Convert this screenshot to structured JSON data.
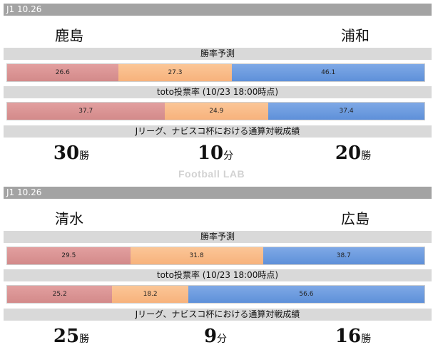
{
  "watermark": "Football LAB",
  "matches": [
    {
      "header": "J1 10.26",
      "home_team": "鹿島",
      "away_team": "浦和",
      "predict_label": "勝率予測",
      "predict": {
        "home": 26.6,
        "draw": 27.3,
        "away": 46.1,
        "home_text": "26.6",
        "draw_text": "27.3",
        "away_text": "46.1"
      },
      "toto_label": "toto投票率 (10/23 18:00時点)",
      "toto": {
        "home": 37.7,
        "draw": 24.9,
        "away": 37.4,
        "home_text": "37.7",
        "draw_text": "24.9",
        "away_text": "37.4"
      },
      "record_label": "Jリーグ、ナビスコ杯における通算対戦成績",
      "record": {
        "home_wins": "30",
        "draws": "10",
        "away_wins": "20",
        "win_unit": "勝",
        "draw_unit": "分"
      }
    },
    {
      "header": "J1 10.26",
      "home_team": "清水",
      "away_team": "広島",
      "predict_label": "勝率予測",
      "predict": {
        "home": 29.5,
        "draw": 31.8,
        "away": 38.7,
        "home_text": "29.5",
        "draw_text": "31.8",
        "away_text": "38.7"
      },
      "toto_label": "toto投票率 (10/23 18:00時点)",
      "toto": {
        "home": 25.2,
        "draw": 18.2,
        "away": 56.6,
        "home_text": "25.2",
        "draw_text": "18.2",
        "away_text": "56.6"
      },
      "record_label": "Jリーグ、ナビスコ杯における通算対戦成績",
      "record": {
        "home_wins": "25",
        "draws": "9",
        "away_wins": "16",
        "win_unit": "勝",
        "draw_unit": "分"
      }
    }
  ]
}
